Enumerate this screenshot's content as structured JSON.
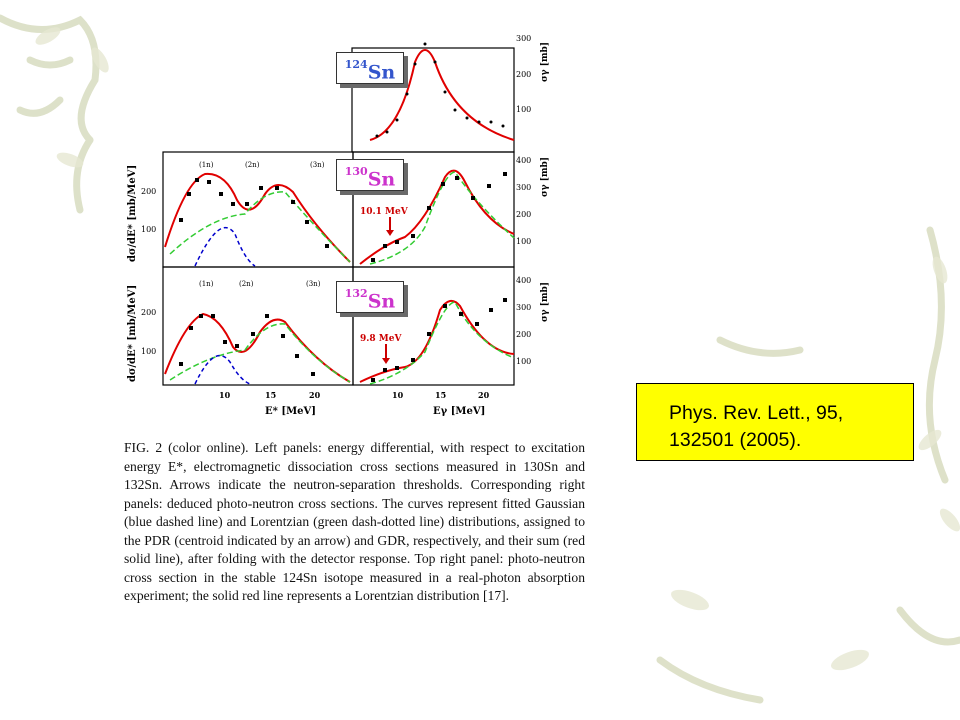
{
  "figure": {
    "label_124": {
      "mass": "124",
      "element": "Sn"
    },
    "label_130": {
      "mass": "130",
      "element": "Sn"
    },
    "label_132": {
      "mass": "132",
      "element": "Sn"
    },
    "left_ylabel": "dσ/dE* [mb/MeV]",
    "right_ylabel": "σγ [mb]",
    "left_xlabel": "E* [MeV]",
    "right_xlabel": "Eγ [MeV]",
    "threshold_labels": [
      "(1n)",
      "(2n)",
      "(3n)"
    ],
    "arrow_130": "10.1 MeV",
    "arrow_132": "9.8 MeV",
    "top_right_yticks": [
      "300",
      "200",
      "100"
    ],
    "mid_right_yticks": [
      "400",
      "300",
      "200",
      "100"
    ],
    "bot_right_yticks": [
      "400",
      "300",
      "200",
      "100"
    ],
    "left_yticks": [
      "200",
      "100"
    ],
    "left_xticks": [
      "10",
      "15",
      "20"
    ],
    "right_xticks": [
      "10",
      "15",
      "20"
    ]
  },
  "caption": "FIG. 2 (color online). Left panels: energy differential, with respect to excitation energy E*, electromagnetic dissociation cross sections measured in 130Sn and 132Sn. Arrows indicate the neutron-separation thresholds. Corresponding right panels: deduced photo-neutron cross sections. The curves represent fitted Gaussian (blue dashed line) and Lorentzian (green dash-dotted line) distributions, assigned to the PDR (centroid indicated by an arrow) and GDR, respectively, and their sum (red solid line), after folding with the detector response. Top right panel: photo-neutron cross section in the stable 124Sn isotope measured in a real-photon absorption experiment; the solid red line represents a Lorentzian distribution [17].",
  "citation": "Phys. Rev. Lett., 95, 132501 (2005).",
  "colors": {
    "red": "#e00000",
    "green": "#33cc33",
    "blue": "#0000cc",
    "label_124": "#3355cc",
    "label_sn": "#cc33cc",
    "citation_bg": "#ffff00"
  }
}
